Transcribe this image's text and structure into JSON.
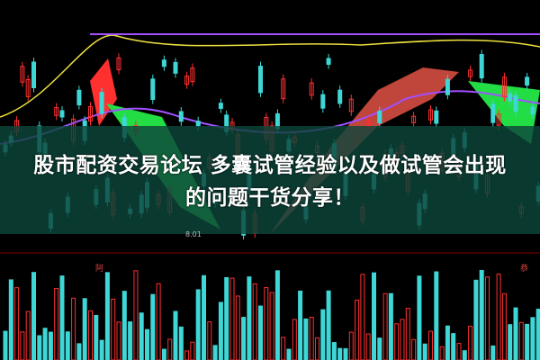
{
  "article": {
    "title_line1": "股市配资交易论坛 多囊试管经验以及做试管会出现",
    "title_line2": "的问题干货分享！"
  },
  "chart": {
    "price_label": "8.01",
    "lower_label_left": "阿",
    "lower_label_right": "恭"
  },
  "colors": {
    "up": "#ff3030",
    "down": "#3fd6d6",
    "band_green": "#22dd44",
    "band_red": "#c0453a",
    "yellow_line": "#f0e040",
    "purple_line": "#a050ff",
    "overlay": "#0c463a"
  }
}
